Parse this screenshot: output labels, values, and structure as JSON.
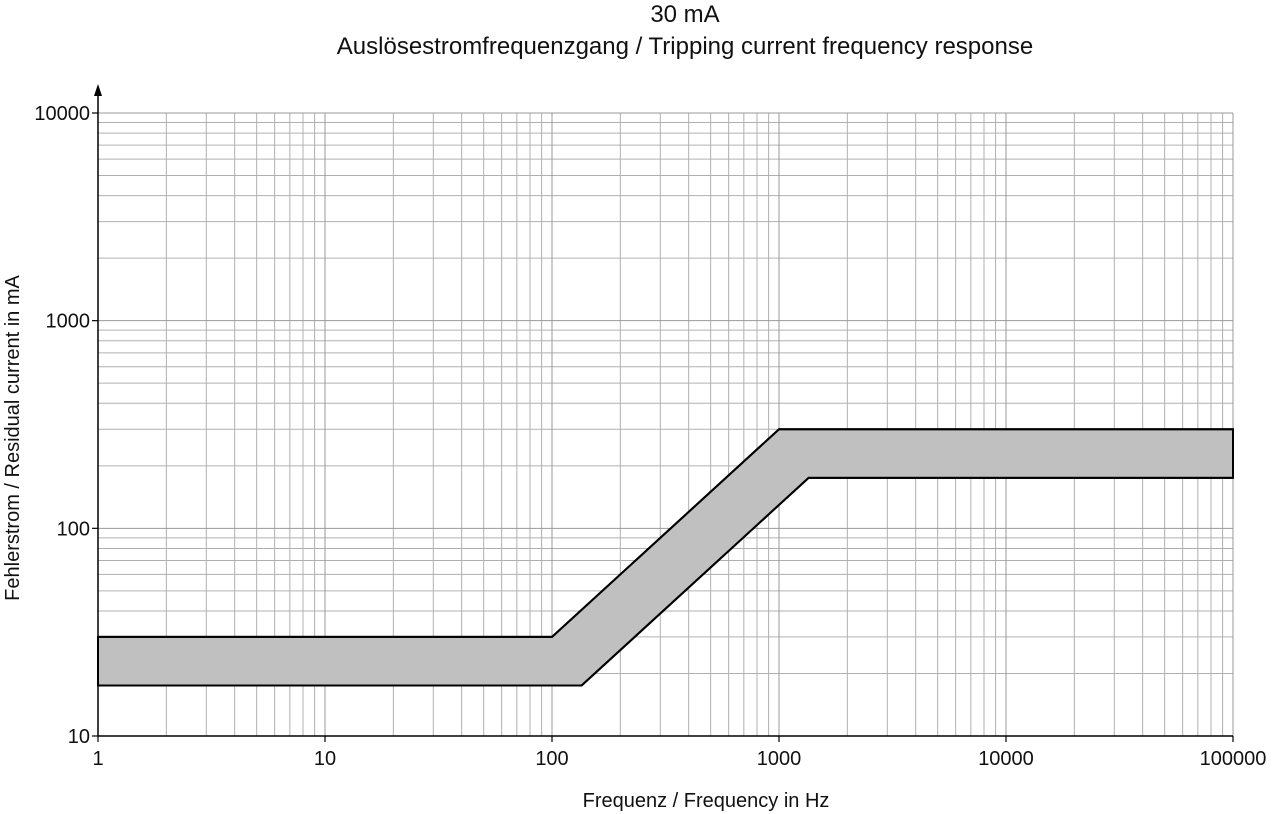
{
  "chart_data": {
    "type": "band",
    "title": "30 mA",
    "subtitle": "Auslösestromfrequenzgang / Tripping current frequency response",
    "x_label": "Frequenz /  Frequency in Hz",
    "y_label": "Fehlerstrom /  Residual current in mA",
    "log_x": true,
    "log_y": true,
    "grid": true,
    "minor_grid": true,
    "fill": "#c0c0c0",
    "line_color": "#000000",
    "xlim": [
      1,
      100000
    ],
    "ylim": [
      10,
      10000
    ],
    "xticks": [
      1,
      10,
      100,
      1000,
      10000,
      100000
    ],
    "yticks": [
      10,
      100,
      1000,
      10000
    ],
    "series": [
      {
        "x": [
          1,
          100,
          1000,
          100000
        ],
        "values": [
          30,
          30,
          300,
          300
        ]
      },
      {
        "x": [
          1,
          135,
          1350,
          100000
        ],
        "values": [
          17.5,
          17.5,
          175,
          175
        ]
      }
    ]
  }
}
